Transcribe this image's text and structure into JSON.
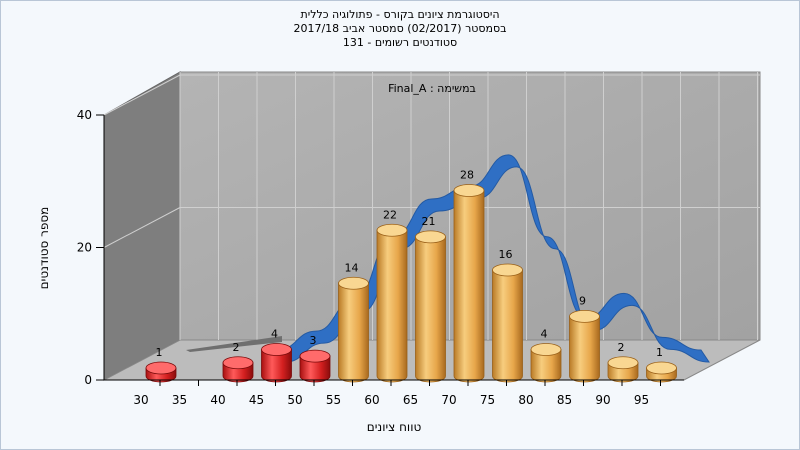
{
  "title": {
    "line1": "היסטוגרמת ציונים בקורס - פתולוגיה כללית",
    "line2": "בסמסטר  (02/2017)  סמסטר אביב 2017/18",
    "line3": "סטודנטים רשומים - 131"
  },
  "colors": {
    "low_bar": "#d42020",
    "high_bar": "#e8a845",
    "curve": "#2f6fc4",
    "back_wall": "#a8a8a8",
    "side_wall": "#7e7e7e",
    "floor": "#bcbcbc"
  },
  "chart_data": {
    "type": "bar",
    "annotation": "Final_A : במשימה",
    "xlabel": "טווח ציונים",
    "ylabel": "מספר סטודנטים",
    "ylim": [
      0,
      40
    ],
    "yticks": [
      0,
      20,
      40
    ],
    "x_ticks": [
      "30",
      "35",
      "40",
      "45",
      "50",
      "55",
      "60",
      "65",
      "70",
      "75",
      "80",
      "85",
      "90",
      "95"
    ],
    "categories": [
      "30",
      "35",
      "40",
      "45",
      "50",
      "55",
      "60",
      "65",
      "70",
      "75",
      "80",
      "85",
      "90",
      "95"
    ],
    "values": [
      1,
      0,
      2,
      4,
      3,
      14,
      22,
      21,
      28,
      16,
      4,
      9,
      2,
      1
    ],
    "value_labels": [
      "1",
      "",
      "2",
      "4",
      "3",
      "14",
      "22",
      "21",
      "28",
      "16",
      "4",
      "9",
      "2",
      "1"
    ],
    "fail_threshold": 55,
    "grid": true,
    "legend": "none",
    "curve_series": {
      "x": [
        45,
        50,
        55,
        60,
        65,
        70,
        75,
        80,
        85,
        90,
        95,
        100
      ],
      "y": [
        0,
        3,
        8,
        18,
        24,
        26,
        31,
        18,
        5,
        9,
        2,
        0
      ]
    }
  }
}
